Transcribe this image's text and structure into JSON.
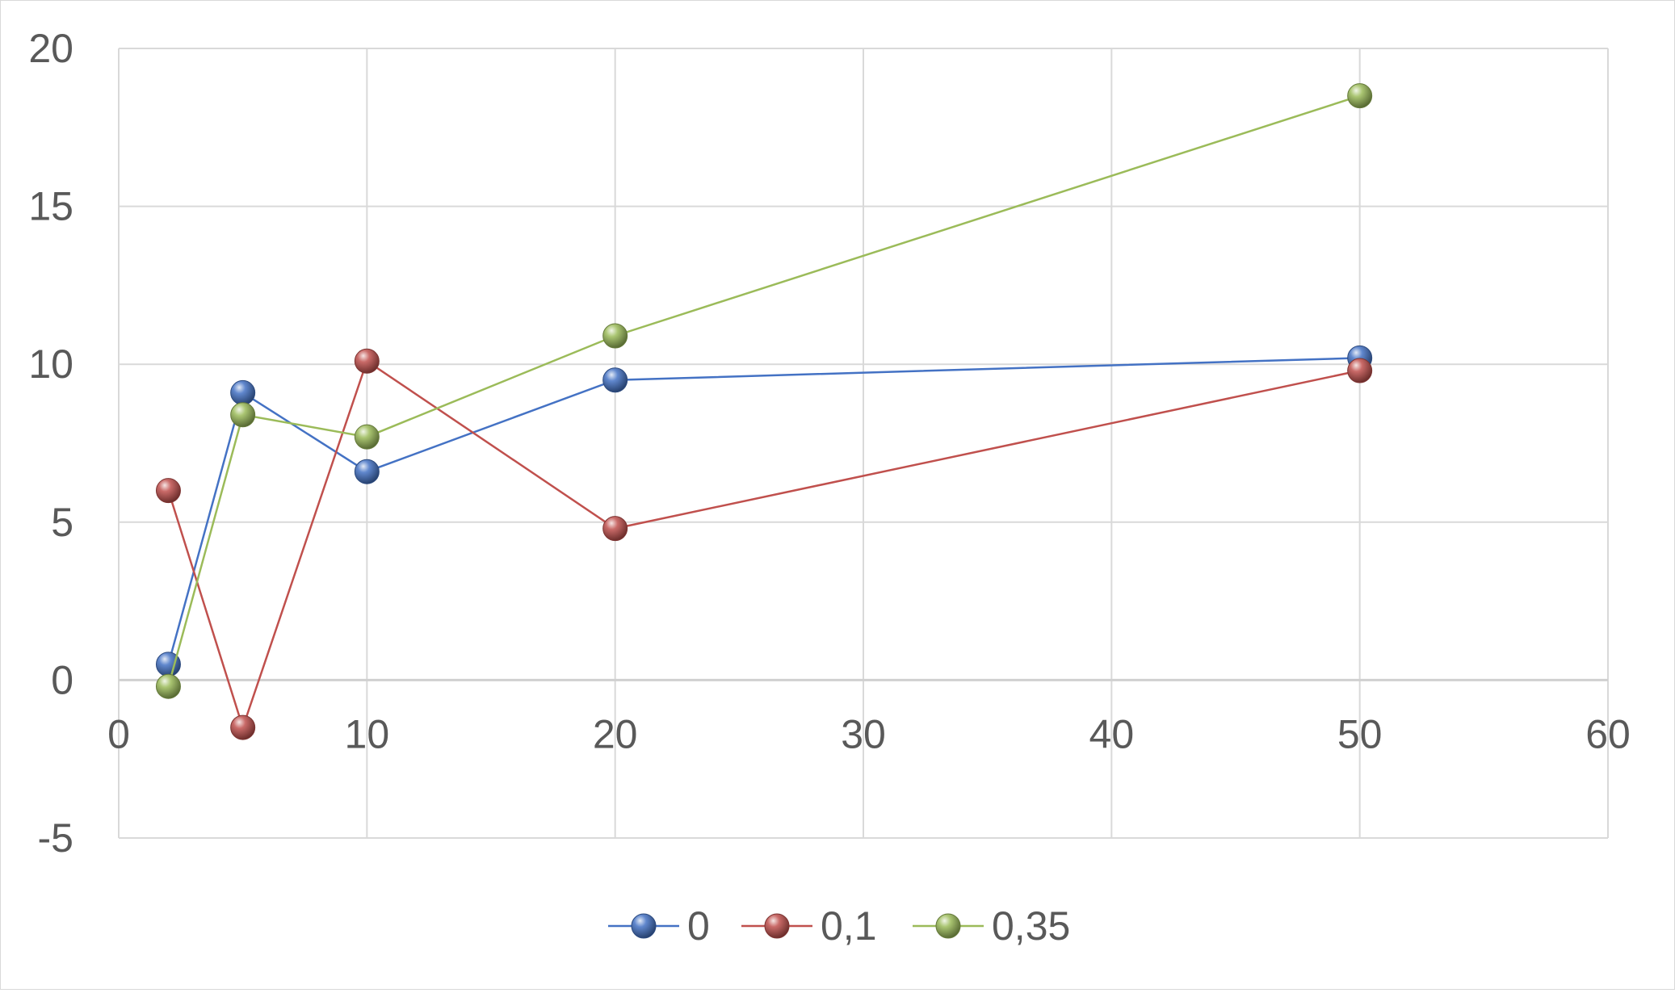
{
  "chart_data": {
    "type": "scatter",
    "title": "",
    "xlabel": "",
    "ylabel": "",
    "xlim": [
      0,
      60
    ],
    "ylim": [
      -5,
      20
    ],
    "x_ticks": [
      0,
      10,
      20,
      30,
      40,
      50,
      60
    ],
    "y_ticks": [
      -5,
      0,
      5,
      10,
      15,
      20
    ],
    "x_tick_labels": [
      "0",
      "10",
      "20",
      "30",
      "40",
      "50",
      "60"
    ],
    "y_tick_labels": [
      "-5",
      "0",
      "5",
      "10",
      "15",
      "20"
    ],
    "grid": true,
    "legend_position": "bottom",
    "marker": "sphere",
    "lines": "straight",
    "series": [
      {
        "name": "0",
        "color": "#4472c4",
        "x": [
          2,
          5,
          10,
          20,
          50
        ],
        "y": [
          0.5,
          9.1,
          6.6,
          9.5,
          10.2
        ]
      },
      {
        "name": "0,1",
        "color": "#c0504d",
        "x": [
          2,
          5,
          10,
          20,
          50
        ],
        "y": [
          6.0,
          -1.5,
          10.1,
          4.8,
          9.8
        ]
      },
      {
        "name": "0,35",
        "color": "#9bbb59",
        "x": [
          2,
          5,
          10,
          20,
          50
        ],
        "y": [
          -0.2,
          8.4,
          7.7,
          10.9,
          18.5
        ]
      }
    ]
  }
}
